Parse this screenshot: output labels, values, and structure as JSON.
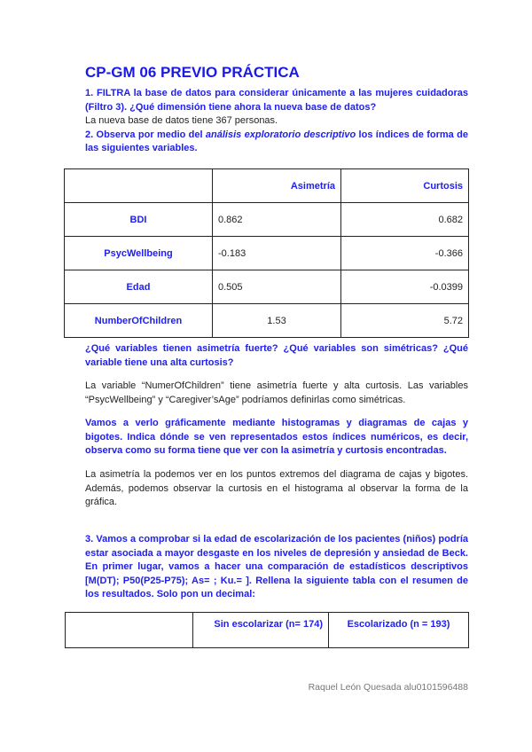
{
  "title": "CP-GM 06 PREVIO PRÁCTICA",
  "q1": "1. FILTRA la base de datos para considerar únicamente a las mujeres cuidadoras (Filtro 3). ¿Qué dimensión tiene ahora la nueva base de datos?",
  "a1": "La nueva base de datos tiene 367 personas.",
  "q2_pre": "2. Observa por medio del ",
  "q2_em": "análisis exploratorio descriptivo",
  "q2_post": " los índices de forma de las siguientes variables.",
  "table1": {
    "headers": [
      "",
      "Asimetría",
      "Curtosis"
    ],
    "rows": [
      [
        "BDI",
        "0.862",
        "0.682"
      ],
      [
        "PsycWellbeing",
        "-0.183",
        "-0.366"
      ],
      [
        "Edad",
        "0.505",
        "-0.0399"
      ],
      [
        "NumberOfChildren",
        "1.53",
        "5.72"
      ]
    ]
  },
  "q2b": "¿Qué variables tienen asimetría fuerte? ¿Qué variables son simétricas? ¿Qué variable tiene una alta curtosis?",
  "a2b": "La variable “NumerOfChildren” tiene asimetría fuerte y alta curtosis. Las variables “PsycWellbeing” y “Caregiver’sAge” podríamos definirlas como simétricas.",
  "q2c": "Vamos a verlo gráficamente mediante histogramas y diagramas de cajas y bigotes. Indica dónde se ven representados estos índices numéricos, es decir, observa como su forma tiene que ver con la asimetría y curtosis encontradas.",
  "a2c": "La asimetría la podemos ver en los puntos extremos del diagrama de cajas y bigotes. Además, podemos observar la curtosis en el histograma al observar la forma de la gráfica.",
  "q3": "3. Vamos a comprobar si la edad de escolarización de los pacientes (niños) podría estar asociada a mayor desgaste en los niveles de depresión y ansiedad de Beck. En primer lugar, vamos a hacer una comparación de estadísticos descriptivos [M(DT); P50(P25-P75); As= ; Ku.= ]. Rellena la siguiente tabla con el resumen de los resultados. Solo pon un decimal:",
  "table2": {
    "headers": [
      "",
      "Sin escolarizar (n= 174)",
      "Escolarizado (n = 193)"
    ]
  },
  "footer": "Raquel León Quesada alu0101596488"
}
